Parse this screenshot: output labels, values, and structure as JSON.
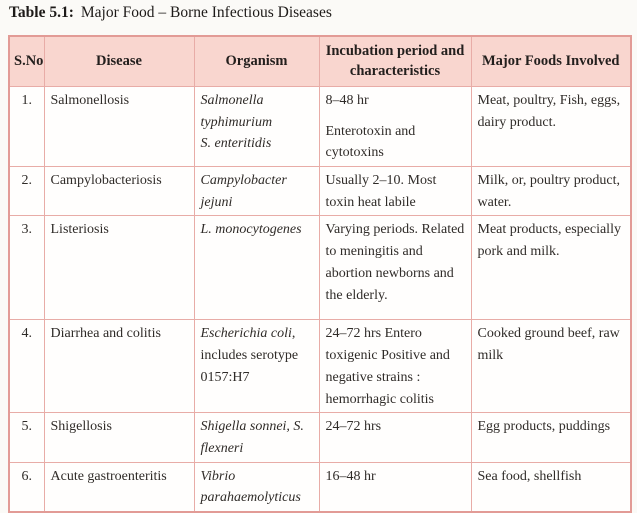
{
  "title": {
    "prefix": "Table 5.1:",
    "text": "Major Food – Borne Infectious Diseases"
  },
  "colors": {
    "header_background": "#f9d6cf",
    "border": "#e29b96",
    "text": "#2f2b28"
  },
  "table": {
    "headers": [
      "S.No",
      "Disease",
      "Organism",
      "Incubation period and characteristics",
      "Major Foods Involved"
    ],
    "rows": [
      {
        "sno": "1.",
        "disease": "Salmonellosis",
        "organism": [
          {
            "text": "Salmonella typhimurium",
            "italic": true,
            "break": true
          },
          {
            "text": "S. enteritidis",
            "italic": true
          }
        ],
        "incubation": [
          "8–48 hr",
          "Enterotoxin and cytotoxins"
        ],
        "foods": "Meat, poultry, Fish, eggs, dairy product."
      },
      {
        "sno": "2.",
        "disease": "Campylobacteriosis",
        "organism": [
          {
            "text": "Campylobacter jejuni",
            "italic": true
          }
        ],
        "incubation": [
          "Usually 2–10. Most toxin heat labile"
        ],
        "foods": "Milk, or, poultry product, water."
      },
      {
        "sno": "3.",
        "disease": "Listeriosis",
        "organism": [
          {
            "text": "L. monocytogenes",
            "italic": true
          }
        ],
        "incubation": [
          "Varying periods. Related to meningitis and abortion newborns and the elderly."
        ],
        "foods": "Meat products, especially pork and milk."
      },
      {
        "sno": "4.",
        "disease": "Diarrhea and colitis",
        "organism": [
          {
            "text": "Escherichia coli",
            "italic": true
          },
          {
            "text": ", includes serotype 0157:H7",
            "italic": false
          }
        ],
        "incubation": [
          "24–72 hrs Entero toxigenic Positive and negative strains : hemorrhagic colitis"
        ],
        "foods": "Cooked ground beef, raw milk"
      },
      {
        "sno": "5.",
        "disease": "Shigellosis",
        "organism": [
          {
            "text": "Shigella sonnei, S. flexneri",
            "italic": true
          }
        ],
        "incubation": [
          "24–72 hrs"
        ],
        "foods": "Egg products, puddings"
      },
      {
        "sno": "6.",
        "disease": "Acute gastroenteritis",
        "organism": [
          {
            "text": "Vibrio parahaemolyticus",
            "italic": true
          }
        ],
        "incubation": [
          "16–48 hr"
        ],
        "foods": "Sea food, shellfish"
      }
    ]
  }
}
